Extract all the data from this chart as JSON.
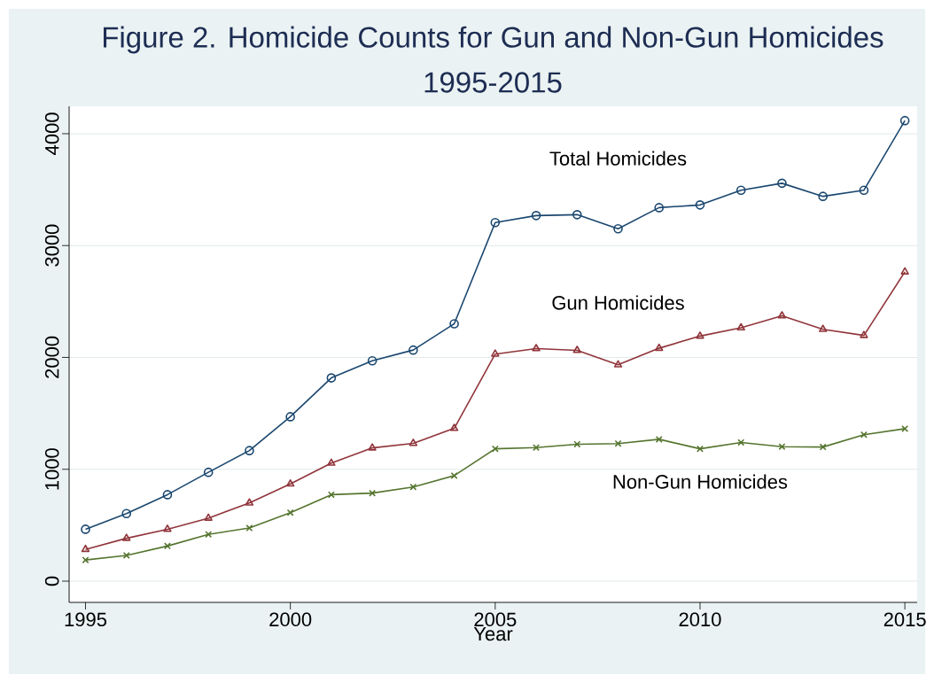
{
  "chart_data": {
    "type": "line",
    "title": "Figure 2. Homicide Counts for Gun and Non-Gun Homicides",
    "subtitle": "1995-2015",
    "xlabel": "Year",
    "x": [
      1995,
      1996,
      1997,
      1998,
      1999,
      2000,
      2001,
      2002,
      2003,
      2004,
      2005,
      2006,
      2007,
      2008,
      2009,
      2010,
      2011,
      2012,
      2013,
      2014,
      2015
    ],
    "series": [
      {
        "name": "Total Homicides",
        "color": "#1a476f",
        "marker": "circle",
        "values": [
          464,
          604,
          773,
          973,
          1167,
          1470,
          1817,
          1970,
          2066,
          2301,
          3205,
          3268,
          3276,
          3150,
          3339,
          3363,
          3495,
          3557,
          3440,
          3495,
          4117
        ]
      },
      {
        "name": "Gun Homicides",
        "color": "#90353b",
        "marker": "triangle",
        "values": [
          284,
          383,
          464,
          563,
          699,
          869,
          1055,
          1191,
          1232,
          1366,
          2030,
          2079,
          2063,
          1934,
          2082,
          2191,
          2265,
          2372,
          2251,
          2197,
          2765
        ]
      },
      {
        "name": "Non-Gun Homicides",
        "color": "#55752f",
        "marker": "cross",
        "values": [
          189,
          230,
          314,
          418,
          475,
          612,
          773,
          787,
          842,
          943,
          1183,
          1194,
          1224,
          1230,
          1268,
          1183,
          1240,
          1202,
          1199,
          1309,
          1363
        ]
      }
    ],
    "xlim": [
      1994.6,
      2015.3
    ],
    "ylim": [
      -190,
      4245
    ],
    "xticks": [
      1995,
      2000,
      2005,
      2010,
      2015
    ],
    "yticks": [
      0,
      1000,
      2000,
      3000,
      4000
    ],
    "grid": "y",
    "legend": false,
    "line_style": "solid"
  }
}
